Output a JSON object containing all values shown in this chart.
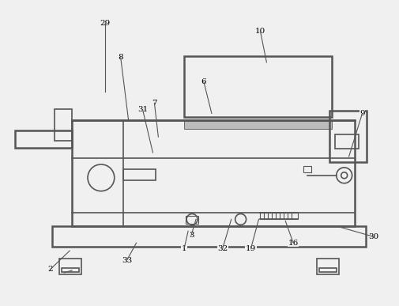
{
  "bg_color": "#f0f0f0",
  "line_color": "#555555",
  "lw": 1.2,
  "lw2": 1.8,
  "label_data": [
    [
      "29",
      132,
      28,
      132,
      115
    ],
    [
      "8",
      152,
      72,
      162,
      152
    ],
    [
      "7",
      195,
      130,
      200,
      173
    ],
    [
      "31",
      180,
      138,
      193,
      193
    ],
    [
      "6",
      258,
      103,
      268,
      143
    ],
    [
      "10",
      330,
      38,
      338,
      78
    ],
    [
      "9",
      460,
      143,
      443,
      198
    ],
    [
      "2",
      62,
      342,
      87,
      318
    ],
    [
      "33",
      160,
      330,
      172,
      308
    ],
    [
      "1",
      233,
      315,
      238,
      293
    ],
    [
      "3",
      242,
      298,
      248,
      278
    ],
    [
      "32",
      282,
      315,
      293,
      278
    ],
    [
      "19",
      318,
      315,
      328,
      278
    ],
    [
      "16",
      372,
      308,
      362,
      280
    ],
    [
      "30",
      474,
      300,
      432,
      288
    ]
  ]
}
